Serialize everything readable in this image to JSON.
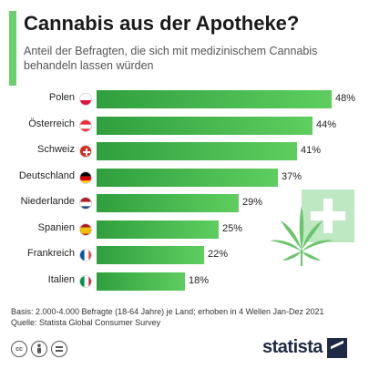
{
  "header": {
    "title": "Cannabis aus der Apotheke?",
    "subtitle": "Anteil der Befragten, die sich mit medizinischem Cannabis behandeln lassen würden"
  },
  "chart_data": {
    "type": "bar",
    "orientation": "horizontal",
    "categories": [
      "Polen",
      "Österreich",
      "Schweiz",
      "Deutschland",
      "Niederlande",
      "Spanien",
      "Frankreich",
      "Italien"
    ],
    "values": [
      48,
      44,
      41,
      37,
      29,
      25,
      22,
      18
    ],
    "value_labels": [
      "48%",
      "44%",
      "41%",
      "37%",
      "29%",
      "25%",
      "22%",
      "18%"
    ],
    "unit": "%",
    "xlim": [
      0,
      48
    ],
    "grid": false,
    "legend": "none",
    "colors": {
      "bar_start": "#2f9f3e",
      "bar_end": "#5fce5f"
    },
    "flags": [
      "poland-flag-icon",
      "austria-flag-icon",
      "switzerland-flag-icon",
      "germany-flag-icon",
      "netherlands-flag-icon",
      "spain-flag-icon",
      "france-flag-icon",
      "italy-flag-icon"
    ]
  },
  "footer": {
    "basis": "Basis: 2.000-4.000 Befragte (18-64 Jahre) je Land; erhoben in 4 Wellen Jan-Dez 2021",
    "source": "Quelle: Statista Global Consumer Survey",
    "license_icons": [
      "cc-icon",
      "attribution-icon",
      "no-derivatives-icon"
    ],
    "brand": "statista"
  },
  "colors": {
    "accent": "#6ad06a",
    "plus_tile": "#bde8c2",
    "leaf": "#6cc46c",
    "brand": "#1f2a44"
  }
}
